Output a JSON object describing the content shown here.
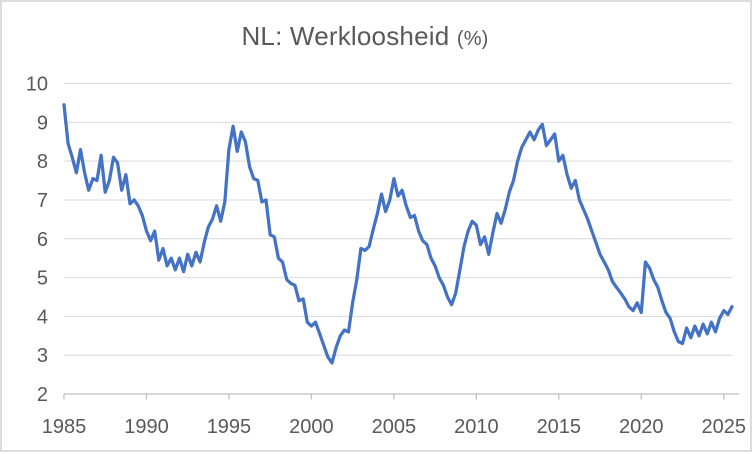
{
  "window": {
    "background": "#ffffff",
    "border_color": "#dcdcdc"
  },
  "chart_data": {
    "type": "line",
    "title": "NL: Werkloosheid",
    "title_suffix": "(%)",
    "title_color": "#595959",
    "legend": "none",
    "grid": "horizontal",
    "gridline_color": "#d9d9d9",
    "axis_line_color": "#bfbfbf",
    "tick_label_color": "#595959",
    "x_range": [
      1985,
      2025.5
    ],
    "y_range": [
      2,
      10
    ],
    "x_ticks": [
      1985,
      1990,
      1995,
      2000,
      2005,
      2010,
      2015,
      2020,
      2025
    ],
    "y_ticks": [
      2,
      3,
      4,
      5,
      6,
      7,
      8,
      9,
      10
    ],
    "series": [
      {
        "name": "NL werkloosheid (%)",
        "color": "#4472C4",
        "line_width": 3.25,
        "x_start": 1985.0,
        "x_step": 0.25,
        "values": [
          9.45,
          8.45,
          8.1,
          7.7,
          8.3,
          7.7,
          7.25,
          7.55,
          7.5,
          8.15,
          7.2,
          7.5,
          8.1,
          7.95,
          7.25,
          7.65,
          6.9,
          7.0,
          6.85,
          6.6,
          6.2,
          5.95,
          6.2,
          5.45,
          5.75,
          5.3,
          5.5,
          5.2,
          5.5,
          5.15,
          5.6,
          5.3,
          5.65,
          5.4,
          5.9,
          6.3,
          6.5,
          6.85,
          6.45,
          6.95,
          8.3,
          8.9,
          8.25,
          8.75,
          8.5,
          7.85,
          7.55,
          7.5,
          6.95,
          7.0,
          6.1,
          6.05,
          5.5,
          5.4,
          4.95,
          4.85,
          4.8,
          4.4,
          4.45,
          3.85,
          3.75,
          3.85,
          3.55,
          3.25,
          2.95,
          2.8,
          3.2,
          3.5,
          3.65,
          3.6,
          4.35,
          4.95,
          5.75,
          5.7,
          5.8,
          6.25,
          6.65,
          7.15,
          6.7,
          7.0,
          7.55,
          7.1,
          7.25,
          6.85,
          6.55,
          6.6,
          6.2,
          5.95,
          5.85,
          5.5,
          5.3,
          5.0,
          4.8,
          4.5,
          4.3,
          4.6,
          5.2,
          5.8,
          6.2,
          6.45,
          6.35,
          5.85,
          6.05,
          5.6,
          6.15,
          6.65,
          6.4,
          6.75,
          7.2,
          7.5,
          8.0,
          8.35,
          8.55,
          8.75,
          8.55,
          8.8,
          8.95,
          8.4,
          8.55,
          8.7,
          8.0,
          8.15,
          7.65,
          7.3,
          7.5,
          7.0,
          6.75,
          6.5,
          6.2,
          5.9,
          5.6,
          5.4,
          5.2,
          4.9,
          4.75,
          4.6,
          4.45,
          4.25,
          4.15,
          4.35,
          4.1,
          5.4,
          5.25,
          4.95,
          4.75,
          4.4,
          4.1,
          3.95,
          3.6,
          3.35,
          3.3,
          3.7,
          3.45,
          3.75,
          3.5,
          3.8,
          3.55,
          3.85,
          3.6,
          3.95,
          4.15,
          4.05,
          4.25
        ]
      }
    ]
  }
}
